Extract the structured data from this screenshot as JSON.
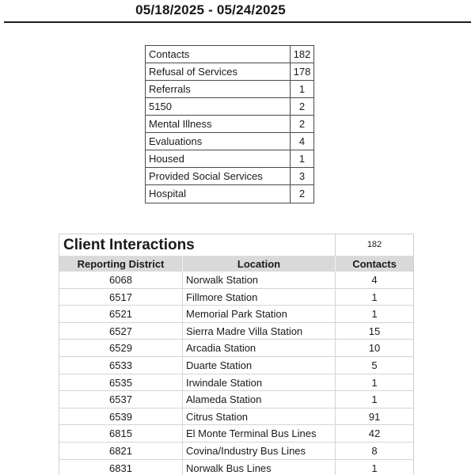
{
  "page": {
    "date_range": "05/18/2025 - 05/24/2025"
  },
  "colors": {
    "text": "#1a1a1a",
    "rule": "#1c1c26",
    "summary_border": "#4a4a4a",
    "grid_line": "#d4d4d4",
    "header_fill": "#d9d9d9"
  },
  "summary_table": {
    "rows": [
      {
        "label": "Contacts",
        "value": "182"
      },
      {
        "label": "Refusal of Services",
        "value": "178"
      },
      {
        "label": "Referrals",
        "value": "1"
      },
      {
        "label": "5150",
        "value": "2"
      },
      {
        "label": "Mental Illness",
        "value": "2"
      },
      {
        "label": "Evaluations",
        "value": "4"
      },
      {
        "label": "Housed",
        "value": "1"
      },
      {
        "label": "Provided Social Services",
        "value": "3"
      },
      {
        "label": "Hospital",
        "value": "2"
      }
    ]
  },
  "client_interactions": {
    "title": "Client Interactions",
    "total": "182",
    "columns": [
      "Reporting District",
      "Location",
      "Contacts"
    ],
    "rows": [
      [
        "6068",
        "Norwalk Station",
        "4"
      ],
      [
        "6517",
        "Fillmore Station",
        "1"
      ],
      [
        "6521",
        "Memorial Park Station",
        "1"
      ],
      [
        "6527",
        "Sierra Madre Villa Station",
        "15"
      ],
      [
        "6529",
        "Arcadia Station",
        "10"
      ],
      [
        "6533",
        "Duarte Station",
        "5"
      ],
      [
        "6535",
        "Irwindale Station",
        "1"
      ],
      [
        "6537",
        "Alameda Station",
        "1"
      ],
      [
        "6539",
        "Citrus Station",
        "91"
      ],
      [
        "6815",
        "El Monte Terminal Bus Lines",
        "42"
      ],
      [
        "6821",
        "Covina/Industry Bus Lines",
        "8"
      ],
      [
        "6831",
        "Norwalk Bus Lines",
        "1"
      ]
    ]
  }
}
